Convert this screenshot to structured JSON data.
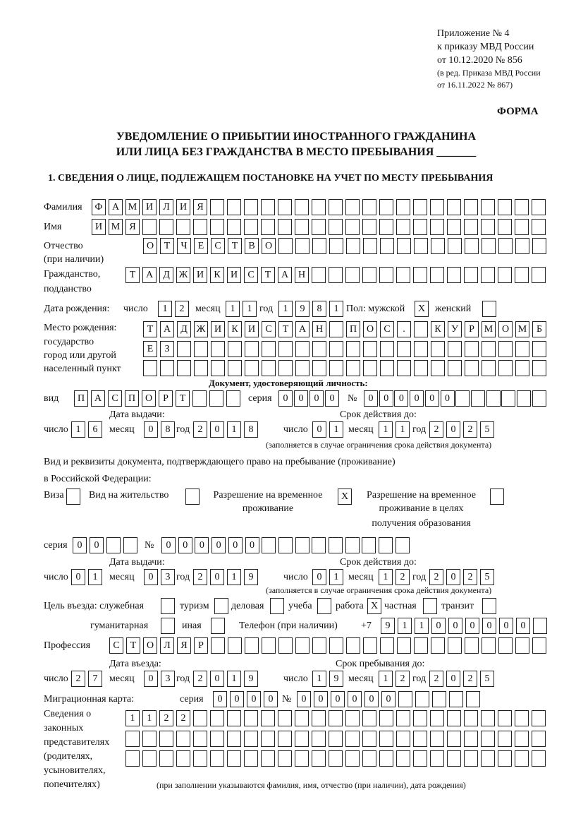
{
  "header": {
    "appendix": [
      "Приложение № 4",
      "к приказу МВД России",
      "от 10.12.2020 № 856"
    ],
    "revision": [
      "(в ред. Приказа МВД России",
      "от 16.11.2022 № 867)"
    ],
    "form_label": "ФОРМА",
    "title_line1": "УВЕДОМЛЕНИЕ О ПРИБЫТИИ ИНОСТРАННОГО ГРАЖДАНИНА",
    "title_line2": "ИЛИ ЛИЦА БЕЗ ГРАЖДАНСТВА В МЕСТО ПРЕБЫВАНИЯ _______",
    "section1": "1. СВЕДЕНИЯ О ЛИЦЕ, ПОДЛЕЖАЩЕМ ПОСТАНОВКЕ НА УЧЕТ ПО МЕСТУ ПРЕБЫВАНИЯ"
  },
  "labels": {
    "surname": "Фамилия",
    "name": "Имя",
    "patronymic": "Отчество",
    "patronymic2": "(при наличии)",
    "citizenship": "Гражданство,",
    "citizenship2": "подданство",
    "birth_date": "Дата рождения:",
    "day": "число",
    "month": "месяц",
    "year": "год",
    "sex": "Пол: мужской",
    "female": "женский",
    "birth_place": [
      "Место рождения:",
      "государство",
      "город или другой",
      "населенный пункт"
    ],
    "id_doc": "Документ, удостоверяющий личность:",
    "kind": "вид",
    "series": "серия",
    "number": "№",
    "issue_date": "Дата выдачи:",
    "valid_until": "Срок действия до:",
    "validity_note": "(заполняется в случае ограничения срока действия документа)",
    "right_doc1": "Вид и реквизиты документа, подтверждающего право на пребывание (проживание)",
    "right_doc2": "в Российской Федерации:",
    "visa": "Виза",
    "residence": "Вид на жительство",
    "temp_permit": [
      "Разрешение на временное",
      "проживание"
    ],
    "temp_permit_edu": [
      "Разрешение на временное",
      "проживание в целях",
      "получения образования"
    ],
    "purpose": "Цель въезда: служебная",
    "tourism": "туризм",
    "business": "деловая",
    "study": "учеба",
    "work": "работа",
    "private": "частная",
    "transit": "транзит",
    "humanitarian": "гуманитарная",
    "other": "иная",
    "phone": "Телефон (при наличии)",
    "phone_prefix": "+7",
    "profession": "Профессия",
    "entry_date": "Дата въезда:",
    "stay_until": "Срок пребывания до:",
    "migration_card": "Миграционная карта:",
    "representatives": [
      "Сведения о",
      "законных",
      "представителях",
      "(родителях,",
      "усыновителях,",
      "попечителях)"
    ],
    "rep_note": "(при заполнении указываются фамилия, имя, отчество (при наличии), дата рождения)"
  },
  "person": {
    "surname": "ФАМИЛИЯ",
    "name": "ИМЯ",
    "patronymic": "ОТЧЕСТВО",
    "citizenship": "ТАДЖИКИСТАН",
    "birth_day": "12",
    "birth_month": "11",
    "birth_year": "1981",
    "male": "X",
    "female": "",
    "birth_place1": "ТАДЖИКИСТАН ПОС. КУРМОМБ",
    "birth_place2": "ЕЗ",
    "birth_place3": ""
  },
  "id_document": {
    "kind": "ПАСПОРТ",
    "series": "0000",
    "number": "000000",
    "issue_day": "16",
    "issue_month": "08",
    "issue_year": "2018",
    "valid_day": "01",
    "valid_month": "11",
    "valid_year": "2025"
  },
  "right_document": {
    "visa": "",
    "residence": "",
    "temp_permit": "X",
    "temp_permit_edu": "",
    "series": "00",
    "number": "000000",
    "issue_day": "01",
    "issue_month": "03",
    "issue_year": "2019",
    "valid_day": "01",
    "valid_month": "12",
    "valid_year": "2025"
  },
  "purpose": {
    "official": "",
    "tourism": "",
    "business": "",
    "study": "",
    "work": "X",
    "private": "",
    "transit": "",
    "humanitarian": "",
    "other": ""
  },
  "phone": "911000000",
  "profession": "СТОЛЯР",
  "entry": {
    "day": "27",
    "month": "03",
    "year": "2019",
    "stay_day": "19",
    "stay_month": "12",
    "stay_year": "2025"
  },
  "migration_card": {
    "series": "0000",
    "number": "000000"
  },
  "representatives": {
    "line1": "1122",
    "line2": "",
    "line3": ""
  }
}
